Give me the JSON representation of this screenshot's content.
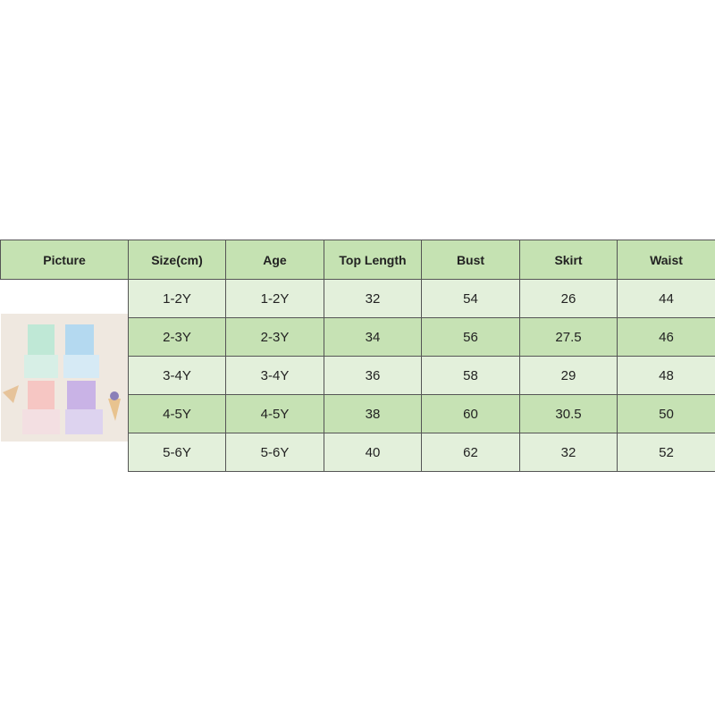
{
  "headers": [
    "Picture",
    "Size(cm)",
    "Age",
    "Top Length",
    "Bust",
    "Skirt",
    "Waist"
  ],
  "rows": [
    [
      "1-2Y",
      "1-2Y",
      "32",
      "54",
      "26",
      "44"
    ],
    [
      "2-3Y",
      "2-3Y",
      "34",
      "56",
      "27.5",
      "46"
    ],
    [
      "3-4Y",
      "3-4Y",
      "36",
      "58",
      "29",
      "48"
    ],
    [
      "4-5Y",
      "4-5Y",
      "38",
      "60",
      "30.5",
      "50"
    ],
    [
      "5-6Y",
      "5-6Y",
      "40",
      "62",
      "32",
      "52"
    ]
  ],
  "colors": {
    "header": "#c5e2b2",
    "row_light": "#e3f0db",
    "row_dark": "#c6e2b4",
    "border": "#555555"
  }
}
